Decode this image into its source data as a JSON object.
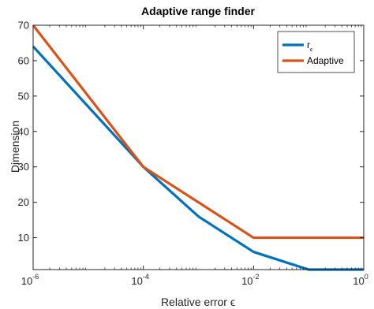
{
  "chart_data": {
    "type": "line",
    "title": "Adaptive range finder",
    "xlabel": "Relative error ϵ",
    "ylabel": "Dimension",
    "xscale": "log",
    "xlim": [
      1e-06,
      1
    ],
    "ylim": [
      1,
      70
    ],
    "x_ticks": [
      {
        "base": "10",
        "exp": "-6",
        "value": 1e-06
      },
      {
        "base": "10",
        "exp": "-4",
        "value": 0.0001
      },
      {
        "base": "10",
        "exp": "-2",
        "value": 0.01
      },
      {
        "base": "10",
        "exp": "0",
        "value": 1
      }
    ],
    "y_ticks": [
      "10",
      "20",
      "30",
      "40",
      "50",
      "60",
      "70"
    ],
    "grid": false,
    "legend_position": "top-right",
    "series": [
      {
        "name": "r",
        "name_subscript": "ϵ",
        "color": "#0072BD",
        "x": [
          1e-06,
          0.0001,
          0.001,
          0.01,
          0.1,
          1
        ],
        "y": [
          64,
          30,
          16,
          6,
          1,
          1
        ]
      },
      {
        "name": "Adaptive",
        "name_subscript": "",
        "color": "#D95319",
        "x": [
          1e-06,
          0.0001,
          0.01,
          1
        ],
        "y": [
          70,
          30,
          10,
          10
        ]
      }
    ]
  }
}
